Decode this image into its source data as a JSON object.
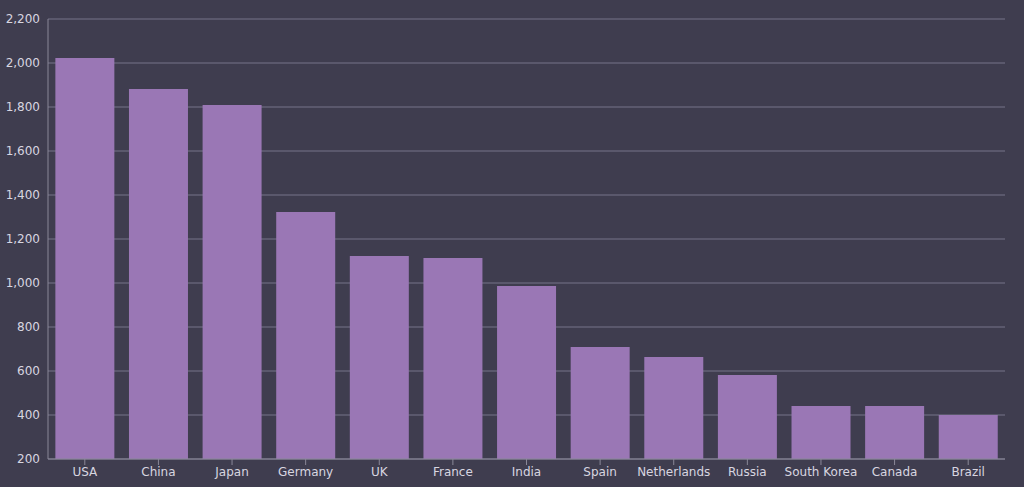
{
  "chart_data": {
    "type": "bar",
    "categories": [
      "USA",
      "China",
      "Japan",
      "Germany",
      "UK",
      "France",
      "India",
      "Spain",
      "Netherlands",
      "Russia",
      "South Korea",
      "Canada",
      "Brazil"
    ],
    "values": [
      2023,
      1882,
      1809,
      1323,
      1123,
      1114,
      986,
      709,
      664,
      582,
      441,
      441,
      400
    ],
    "color": "#9a77b5",
    "ylim": [
      200,
      2200
    ],
    "yticks": [
      200,
      400,
      600,
      800,
      {
        "value": 1000,
        "label": "1,000"
      },
      {
        "value": 1200,
        "label": "1,200"
      },
      {
        "value": 1400,
        "label": "1,400"
      },
      {
        "value": 1600,
        "label": "1,600"
      },
      {
        "value": 1800,
        "label": "1,800"
      },
      {
        "value": 2000,
        "label": "2,000"
      },
      {
        "value": 2200,
        "label": "2,200"
      }
    ],
    "grid": true
  }
}
